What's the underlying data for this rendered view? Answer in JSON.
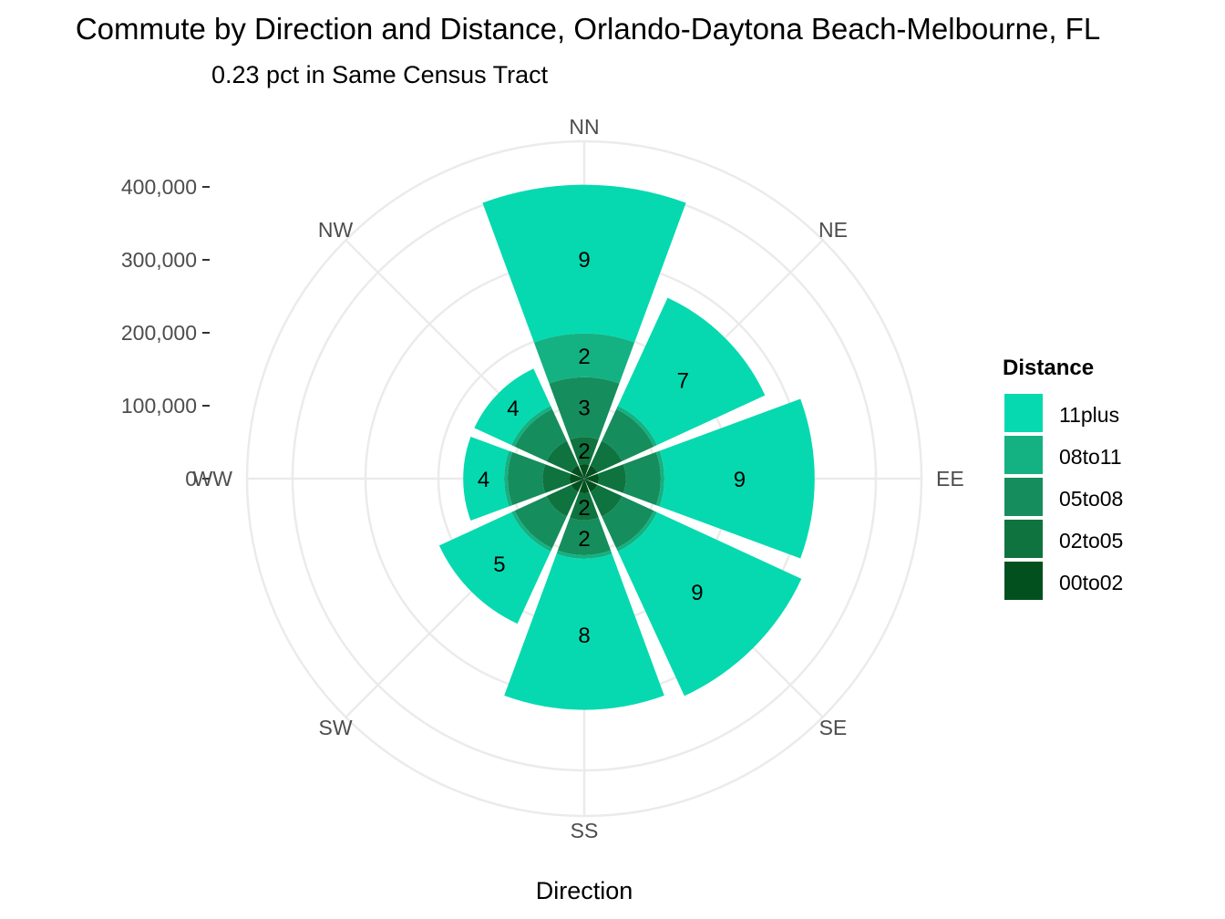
{
  "chart_data": {
    "type": "polar-stacked-bar",
    "title": "Commute by Direction and Distance, Orlando-Daytona Beach-Melbourne, FL",
    "subtitle": "0.23 pct in Same Census Tract",
    "xlabel": "Direction",
    "ylabel": "",
    "directions": [
      "NN",
      "NE",
      "EE",
      "SE",
      "SS",
      "SW",
      "WW",
      "NW"
    ],
    "radial_axis": {
      "ticks": [
        0,
        100000,
        200000,
        300000,
        400000
      ],
      "tick_labels": [
        "0",
        "100,000",
        "200,000",
        "300,000",
        "400,000"
      ]
    },
    "grid": true,
    "legend": {
      "title": "Distance",
      "position": "right",
      "entries": [
        "11plus",
        "08to11",
        "05to08",
        "02to05",
        "00to02"
      ]
    },
    "series": [
      {
        "name": "00to02",
        "color": "#03501F",
        "values": [
          20000,
          20000,
          20000,
          20000,
          20000,
          20000,
          20000,
          20000
        ]
      },
      {
        "name": "02to05",
        "color": "#0E733E",
        "values": [
          37000,
          37000,
          37000,
          37000,
          37000,
          37000,
          37000,
          37000
        ]
      },
      {
        "name": "05to08",
        "color": "#168D5C",
        "values": [
          82000,
          48000,
          48000,
          48000,
          48000,
          48000,
          48000,
          48000
        ]
      },
      {
        "name": "08to11",
        "color": "#14B182",
        "values": [
          60000,
          5000,
          5000,
          5000,
          5000,
          5000,
          5000,
          5000
        ]
      },
      {
        "name": "11plus",
        "color": "#06D9AF",
        "values": [
          204000,
          163000,
          206000,
          218000,
          207000,
          109000,
          56000,
          56000
        ]
      }
    ],
    "bar_labels": [
      {
        "direction": "NN",
        "series": "11plus",
        "text": "9"
      },
      {
        "direction": "NN",
        "series": "08to11",
        "text": "2"
      },
      {
        "direction": "NN",
        "series": "05to08",
        "text": "3"
      },
      {
        "direction": "NN",
        "series": "02to05",
        "text": "2"
      },
      {
        "direction": "NE",
        "series": "11plus",
        "text": "7"
      },
      {
        "direction": "EE",
        "series": "11plus",
        "text": "9"
      },
      {
        "direction": "SE",
        "series": "11plus",
        "text": "9"
      },
      {
        "direction": "SS",
        "series": "11plus",
        "text": "8"
      },
      {
        "direction": "SS",
        "series": "05to08",
        "text": "2"
      },
      {
        "direction": "SS",
        "series": "02to05",
        "text": "2"
      },
      {
        "direction": "SW",
        "series": "11plus",
        "text": "5"
      },
      {
        "direction": "WW",
        "series": "11plus",
        "text": "4"
      },
      {
        "direction": "NW",
        "series": "11plus",
        "text": "4"
      }
    ]
  },
  "colors": {
    "grid": "#ebebeb",
    "tick": "#333333"
  }
}
